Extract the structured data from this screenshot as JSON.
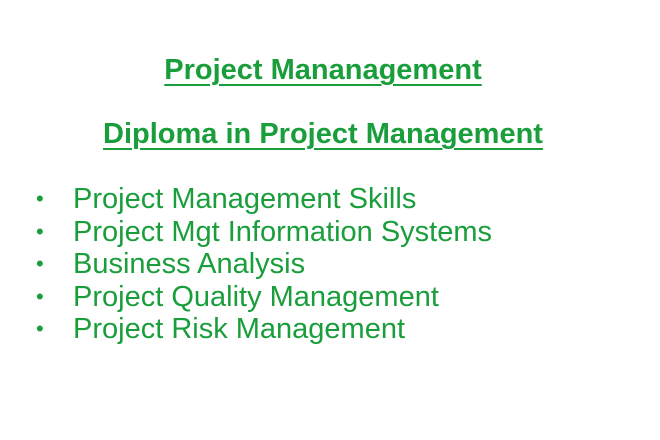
{
  "document": {
    "title": "Project Mananagement",
    "subtitle": "Diploma in Project Management",
    "bullet_char": "•",
    "courses": [
      "Project Management Skills",
      "Project Mgt Information Systems",
      "Business Analysis",
      "Project Quality Management",
      "Project Risk Management"
    ],
    "text_color": "#1a9e3c",
    "background_color": "#ffffff"
  }
}
